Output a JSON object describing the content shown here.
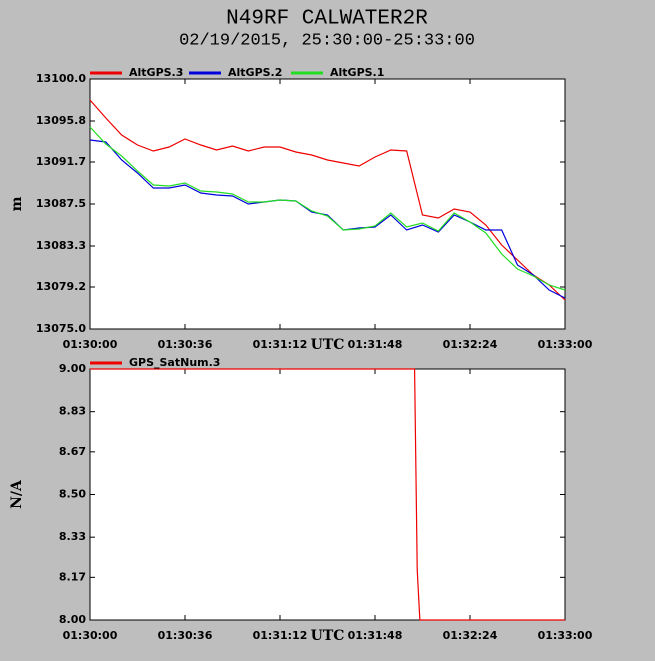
{
  "chart_data": [
    {
      "type": "line",
      "title": "N49RF CALWATER2R",
      "subtitle": "02/19/2015, 25:30:00-25:33:00",
      "xlabel": "UTC",
      "ylabel": "m",
      "x": [
        "01:30:00",
        "01:30:06",
        "01:30:12",
        "01:30:18",
        "01:30:24",
        "01:30:30",
        "01:30:36",
        "01:30:42",
        "01:30:48",
        "01:30:54",
        "01:31:00",
        "01:31:06",
        "01:31:12",
        "01:31:18",
        "01:31:24",
        "01:31:30",
        "01:31:36",
        "01:31:42",
        "01:31:48",
        "01:31:54",
        "01:32:00",
        "01:32:06",
        "01:32:12",
        "01:32:18",
        "01:32:24",
        "01:32:30",
        "01:32:36",
        "01:32:42",
        "01:32:48",
        "01:32:54",
        "01:33:00"
      ],
      "series": [
        {
          "name": "AltGPS.3",
          "color": "#ee0000",
          "values": [
            13097.9,
            13096.1,
            13094.4,
            13093.4,
            13092.8,
            13093.2,
            13094.0,
            13093.4,
            13092.9,
            13093.3,
            13092.8,
            13093.2,
            13093.2,
            13092.7,
            13092.4,
            13091.9,
            13091.6,
            13091.3,
            13092.2,
            13092.9,
            13092.8,
            13086.4,
            13086.1,
            13087.0,
            13086.7,
            13085.4,
            13083.4,
            13081.9,
            13080.4,
            13079.4,
            13077.9
          ]
        },
        {
          "name": "AltGPS.2",
          "color": "#0000dd",
          "values": [
            13093.9,
            13093.7,
            13091.9,
            13090.6,
            13089.1,
            13089.1,
            13089.4,
            13088.6,
            13088.4,
            13088.3,
            13087.5,
            13087.7,
            13087.9,
            13087.8,
            13086.7,
            13086.4,
            13084.9,
            13085.1,
            13085.2,
            13086.4,
            13084.9,
            13085.4,
            13084.7,
            13086.4,
            13085.7,
            13084.9,
            13084.9,
            13081.4,
            13080.4,
            13078.9,
            13078.1
          ]
        },
        {
          "name": "AltGPS.1",
          "color": "#22dd22",
          "values": [
            13095.2,
            13093.5,
            13092.3,
            13090.8,
            13089.4,
            13089.3,
            13089.6,
            13088.8,
            13088.7,
            13088.5,
            13087.7,
            13087.7,
            13087.9,
            13087.8,
            13086.8,
            13086.3,
            13084.9,
            13085.0,
            13085.3,
            13086.6,
            13085.2,
            13085.6,
            13084.8,
            13086.6,
            13085.7,
            13084.6,
            13082.5,
            13081.0,
            13080.3,
            13079.4,
            13078.9
          ]
        }
      ],
      "xlim": [
        "01:30:00",
        "01:33:00"
      ],
      "xticks": [
        "01:30:00",
        "01:30:36",
        "01:31:12",
        "01:31:48",
        "01:32:24",
        "01:33:00"
      ],
      "ylim": [
        13075,
        13100
      ],
      "yticks": [
        {
          "value": 13075,
          "label": "13075.0"
        },
        13079.2,
        13083.3,
        13087.5,
        13091.7,
        13095.8,
        {
          "value": 13100,
          "label": "13100.0"
        }
      ]
    },
    {
      "type": "line",
      "xlabel": "UTC",
      "ylabel": "N/A",
      "x": [
        "01:30:00",
        "01:32:03",
        "01:32:04",
        "01:32:05",
        "01:33:00"
      ],
      "series": [
        {
          "name": "GPS_SatNum.3",
          "color": "#ee0000",
          "values": [
            9,
            9,
            8.2,
            8,
            8
          ]
        }
      ],
      "xlim": [
        "01:30:00",
        "01:33:00"
      ],
      "xticks": [
        "01:30:00",
        "01:30:36",
        "01:31:12",
        "01:31:48",
        "01:32:24",
        "01:33:00"
      ],
      "ylim": [
        8,
        9
      ],
      "yticks": [
        {
          "value": 8,
          "label": "8.00"
        },
        8.17,
        8.33,
        {
          "value": 8.5,
          "label": "8.50"
        },
        8.67,
        8.83,
        {
          "value": 9,
          "label": "9.00"
        }
      ]
    }
  ]
}
